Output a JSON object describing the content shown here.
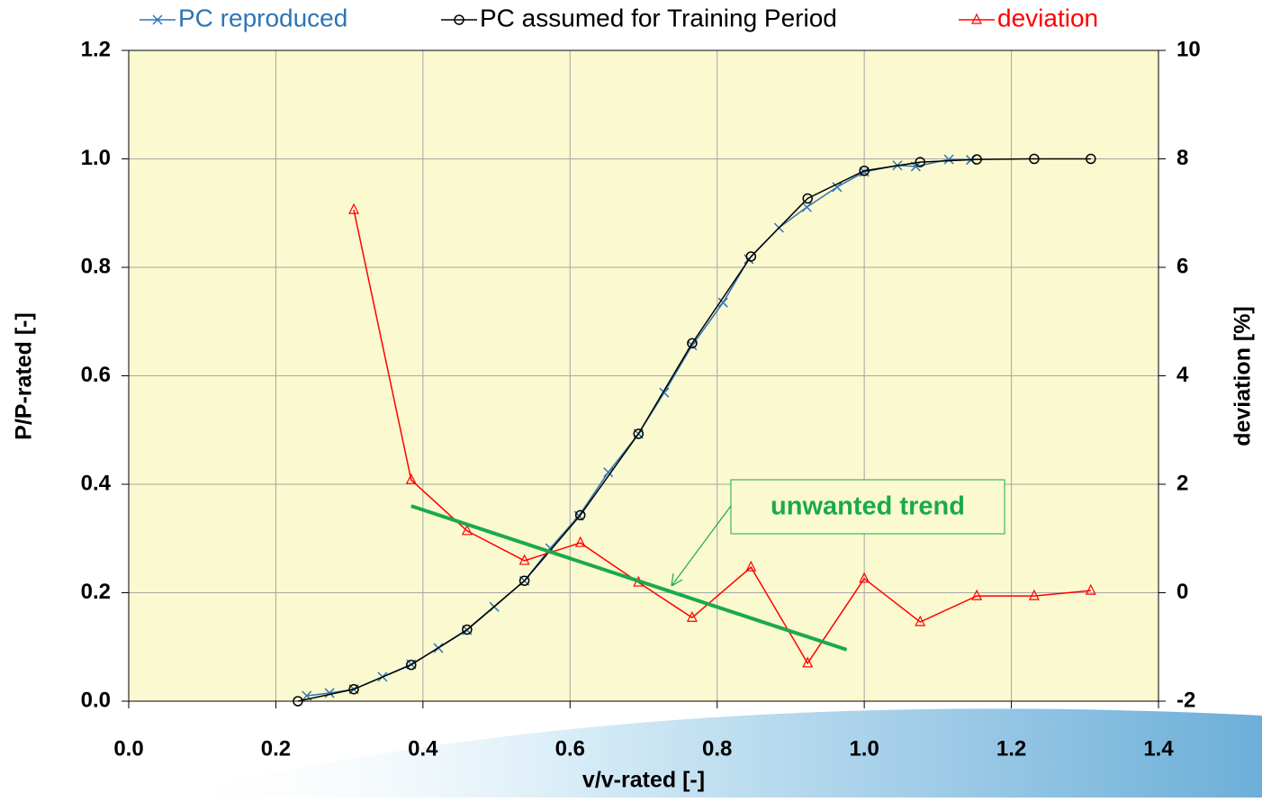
{
  "chart_data": {
    "type": "line",
    "x_label": "v/v-rated [-]",
    "y_label": "P/P-rated [-]",
    "y2_label": "deviation [%]",
    "xlim": [
      0,
      1.4
    ],
    "xticks": [
      {
        "value": 0,
        "label": "0.0"
      },
      0.2,
      0.4,
      0.6,
      0.8,
      {
        "value": 1,
        "label": "1.0"
      },
      1.2,
      1.4
    ],
    "ylim": [
      0,
      1.2
    ],
    "yticks": [
      {
        "value": 0,
        "label": "0.0"
      },
      0.2,
      0.4,
      0.6,
      0.8,
      {
        "value": 1,
        "label": "1.0"
      },
      1.2
    ],
    "y2lim": [
      -2,
      10
    ],
    "y2ticks": [
      -2,
      0,
      2,
      4,
      6,
      8,
      10
    ],
    "grid": true,
    "legend": "top",
    "plot_background": "#fbf9cf",
    "series": [
      {
        "name": "PC reproduced",
        "color": "#2e75b6",
        "marker": "x",
        "x": [
          0.242,
          0.273,
          0.306,
          0.345,
          0.384,
          0.421,
          0.46,
          0.497,
          0.538,
          0.573,
          0.612,
          0.652,
          0.693,
          0.728,
          0.766,
          0.808,
          0.843,
          0.884,
          0.922,
          0.963,
          1.0,
          1.045,
          1.07,
          1.115,
          1.145
        ],
        "values": [
          0.01,
          0.015,
          0.022,
          0.045,
          0.068,
          0.098,
          0.131,
          0.174,
          0.222,
          0.282,
          0.342,
          0.422,
          0.493,
          0.569,
          0.656,
          0.735,
          0.815,
          0.873,
          0.911,
          0.948,
          0.976,
          0.988,
          0.986,
          0.999,
          0.998
        ]
      },
      {
        "name": "PC assumed for Training Period",
        "color": "#000000",
        "marker": "circle",
        "x": [
          0.23,
          0.306,
          0.384,
          0.46,
          0.538,
          0.614,
          0.693,
          0.766,
          0.846,
          0.923,
          1.0,
          1.076,
          1.153,
          1.231,
          1.308
        ],
        "values": [
          0.0,
          0.022,
          0.067,
          0.132,
          0.222,
          0.343,
          0.493,
          0.66,
          0.82,
          0.927,
          0.978,
          0.994,
          0.999,
          1.0,
          1.0
        ]
      },
      {
        "name": "deviation",
        "color": "#ff0000",
        "marker": "triangle",
        "axis": "y2",
        "x": [
          0.306,
          0.384,
          0.46,
          0.538,
          0.614,
          0.693,
          0.766,
          0.846,
          0.923,
          1.0,
          1.076,
          1.153,
          1.231,
          1.308
        ],
        "values": [
          7.06,
          2.08,
          1.14,
          0.59,
          0.92,
          0.19,
          -0.46,
          0.47,
          -1.3,
          0.26,
          -0.54,
          -0.06,
          -0.06,
          0.04
        ]
      }
    ],
    "trend_line": {
      "color": "#1aaa4a",
      "x": [
        0.384,
        0.976
      ],
      "values": [
        0.36,
        0.095
      ]
    },
    "annotation": {
      "text": "unwanted trend",
      "color": "#1aaa4a"
    }
  }
}
